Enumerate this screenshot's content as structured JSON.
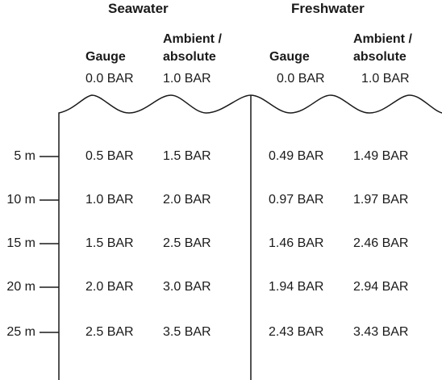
{
  "groups": [
    {
      "title": "Seawater",
      "gauge_label": "Gauge",
      "ambient_label": "Ambient /\nabsolute",
      "surface": [
        "0.0 BAR",
        "1.0 BAR"
      ]
    },
    {
      "title": "Freshwater",
      "gauge_label": "Gauge",
      "ambient_label": "Ambient /\nabsolute",
      "surface": [
        "0.0 BAR",
        "1.0 BAR"
      ]
    }
  ],
  "rows": [
    {
      "depth": "5 m",
      "sea_gauge": "0.5 BAR",
      "sea_abs": "1.5 BAR",
      "fresh_gauge": "0.49 BAR",
      "fresh_abs": "1.49 BAR"
    },
    {
      "depth": "10 m",
      "sea_gauge": "1.0 BAR",
      "sea_abs": "2.0 BAR",
      "fresh_gauge": "0.97 BAR",
      "fresh_abs": "1.97 BAR"
    },
    {
      "depth": "15 m",
      "sea_gauge": "1.5 BAR",
      "sea_abs": "2.5 BAR",
      "fresh_gauge": "1.46 BAR",
      "fresh_abs": "2.46 BAR"
    },
    {
      "depth": "20 m",
      "sea_gauge": "2.0 BAR",
      "sea_abs": "3.0 BAR",
      "fresh_gauge": "1.94 BAR",
      "fresh_abs": "2.94 BAR"
    },
    {
      "depth": "25 m",
      "sea_gauge": "2.5 BAR",
      "sea_abs": "3.5 BAR",
      "fresh_gauge": "2.43 BAR",
      "fresh_abs": "3.43 BAR"
    }
  ]
}
